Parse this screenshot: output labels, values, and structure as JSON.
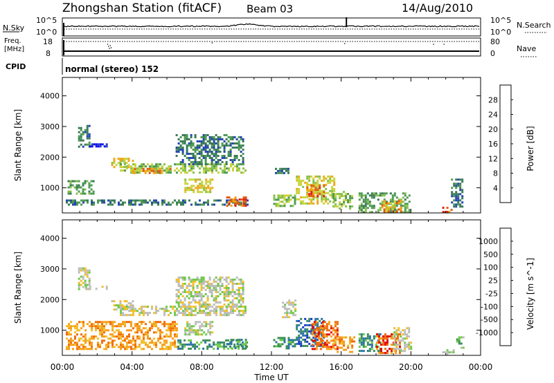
{
  "header": {
    "title": "Zhongshan Station (fitACF)",
    "beam": "Beam 03",
    "date": "14/Aug/2010"
  },
  "panels": {
    "nsky_label": "N.Sky",
    "nsky_top": "10^5",
    "nsky_bottom": "10^0",
    "nsearch_label": "N.Search",
    "nsearch_top": "10^5",
    "nsearch_bottom": "10^0",
    "freq_label_1": "Freq.",
    "freq_label_2": "[MHz]",
    "freq_top": "18",
    "freq_bottom": "8",
    "nave_label": "Nave",
    "nave_top": "80",
    "nave_bottom": "0",
    "cpid_label": "CPID",
    "cpid_text": "normal (stereo) 152"
  },
  "colors": {
    "power_scale": [
      "#0b0bf2",
      "#2645b4",
      "#387a57",
      "#4e9a54",
      "#86c04b",
      "#c9d33a",
      "#f2a414",
      "#e05b10",
      "#e21c14"
    ],
    "velocity_scale": [
      "#e10b0b",
      "#f06a0b",
      "#f79d18",
      "#f0c02c",
      "#bdbdbd",
      "#6fc94a",
      "#3a8f55",
      "#2b73a6",
      "#1c39c9"
    ]
  },
  "chart_data": [
    {
      "type": "heatmap",
      "name": "power",
      "ylabel": "Slant Range [km]",
      "ylim": [
        180,
        4600
      ],
      "yticks": [
        "1000",
        "2000",
        "3000",
        "4000"
      ],
      "xlim": [
        0,
        24
      ],
      "colorbar": {
        "label": "Power [dB]",
        "range": [
          0,
          32
        ],
        "ticks": [
          "4",
          "8",
          "12",
          "16",
          "20",
          "24",
          "28"
        ]
      },
      "regions": [
        {
          "t0": 0.9,
          "t1": 1.5,
          "r0": 2350,
          "r1": 3050,
          "level": 2
        },
        {
          "t0": 1.3,
          "t1": 2.6,
          "r0": 2380,
          "r1": 2450,
          "level": 1
        },
        {
          "t0": 2.8,
          "t1": 4.1,
          "r0": 1650,
          "r1": 1980,
          "level": 5
        },
        {
          "t0": 3.3,
          "t1": 10.5,
          "r0": 1500,
          "r1": 1800,
          "level": 4
        },
        {
          "t0": 4.0,
          "t1": 6.2,
          "r0": 1500,
          "r1": 1650,
          "level": 6
        },
        {
          "t0": 6.5,
          "t1": 10.4,
          "r0": 1800,
          "r1": 2750,
          "level": 2
        },
        {
          "t0": 7.0,
          "t1": 8.6,
          "r0": 850,
          "r1": 1300,
          "level": 5
        },
        {
          "t0": 0.2,
          "t1": 10.6,
          "r0": 450,
          "r1": 620,
          "level": 2
        },
        {
          "t0": 0.3,
          "t1": 1.8,
          "r0": 800,
          "r1": 1250,
          "level": 3
        },
        {
          "t0": 9.4,
          "t1": 10.5,
          "r0": 400,
          "r1": 720,
          "level": 7
        },
        {
          "t0": 12.2,
          "t1": 13.0,
          "r0": 1500,
          "r1": 1650,
          "level": 2
        },
        {
          "t0": 12.1,
          "t1": 13.4,
          "r0": 400,
          "r1": 780,
          "level": 4
        },
        {
          "t0": 13.4,
          "t1": 15.6,
          "r0": 500,
          "r1": 1400,
          "level": 5
        },
        {
          "t0": 14.0,
          "t1": 15.0,
          "r0": 750,
          "r1": 1100,
          "level": 7
        },
        {
          "t0": 15.5,
          "t1": 16.6,
          "r0": 350,
          "r1": 900,
          "level": 4
        },
        {
          "t0": 17.0,
          "t1": 19.9,
          "r0": 220,
          "r1": 850,
          "level": 3
        },
        {
          "t0": 18.3,
          "t1": 19.4,
          "r0": 250,
          "r1": 600,
          "level": 6
        },
        {
          "t0": 21.8,
          "t1": 22.4,
          "r0": 220,
          "r1": 380,
          "level": 7
        },
        {
          "t0": 22.3,
          "t1": 23.0,
          "r0": 400,
          "r1": 1300,
          "level": 2
        }
      ]
    },
    {
      "type": "heatmap",
      "name": "velocity",
      "ylabel": "Slant Range [km]",
      "ylim": [
        180,
        4600
      ],
      "yticks": [
        "1000",
        "2000",
        "3000",
        "4000"
      ],
      "xlim": [
        0,
        24
      ],
      "xticks": [
        "00:00",
        "04:00",
        "08:00",
        "12:00",
        "16:00",
        "20:00",
        "00:00"
      ],
      "xlabel": "Time UT",
      "colorbar": {
        "label": "Velocity [m s^-1]",
        "ticks": [
          "-1000",
          "-500",
          "-100",
          "-25",
          "25",
          "100",
          "500",
          "1000"
        ]
      },
      "regions": [
        {
          "t0": 0.9,
          "t1": 1.5,
          "r0": 2350,
          "r1": 3050,
          "level": 4
        },
        {
          "t0": 1.3,
          "t1": 2.6,
          "r0": 2380,
          "r1": 2450,
          "level": 4
        },
        {
          "t0": 2.8,
          "t1": 4.1,
          "r0": 1650,
          "r1": 1980,
          "level": 4
        },
        {
          "t0": 3.3,
          "t1": 10.5,
          "r0": 1500,
          "r1": 1800,
          "level": 4
        },
        {
          "t0": 6.5,
          "t1": 10.4,
          "r0": 1800,
          "r1": 2750,
          "level": 4
        },
        {
          "t0": 7.0,
          "t1": 8.6,
          "r0": 850,
          "r1": 1300,
          "level": 4
        },
        {
          "t0": 0.2,
          "t1": 6.6,
          "r0": 420,
          "r1": 1300,
          "level": 2
        },
        {
          "t0": 6.6,
          "t1": 10.6,
          "r0": 420,
          "r1": 700,
          "level": 6
        },
        {
          "t0": 9.4,
          "t1": 10.5,
          "r0": 400,
          "r1": 720,
          "level": 6
        },
        {
          "t0": 12.1,
          "t1": 13.4,
          "r0": 400,
          "r1": 780,
          "level": 6
        },
        {
          "t0": 12.6,
          "t1": 13.4,
          "r0": 1400,
          "r1": 2000,
          "level": 4
        },
        {
          "t0": 13.4,
          "t1": 15.0,
          "r0": 500,
          "r1": 1400,
          "level": 7
        },
        {
          "t0": 14.3,
          "t1": 15.8,
          "r0": 400,
          "r1": 1300,
          "level": 1
        },
        {
          "t0": 15.5,
          "t1": 16.8,
          "r0": 300,
          "r1": 800,
          "level": 2
        },
        {
          "t0": 17.0,
          "t1": 18.2,
          "r0": 300,
          "r1": 900,
          "level": 6
        },
        {
          "t0": 18.0,
          "t1": 19.4,
          "r0": 250,
          "r1": 900,
          "level": 1
        },
        {
          "t0": 19.0,
          "t1": 20.0,
          "r0": 300,
          "r1": 1100,
          "level": 4
        },
        {
          "t0": 21.8,
          "t1": 22.4,
          "r0": 220,
          "r1": 380,
          "level": 5
        },
        {
          "t0": 22.6,
          "t1": 23.0,
          "r0": 400,
          "r1": 800,
          "level": 5
        }
      ]
    }
  ]
}
